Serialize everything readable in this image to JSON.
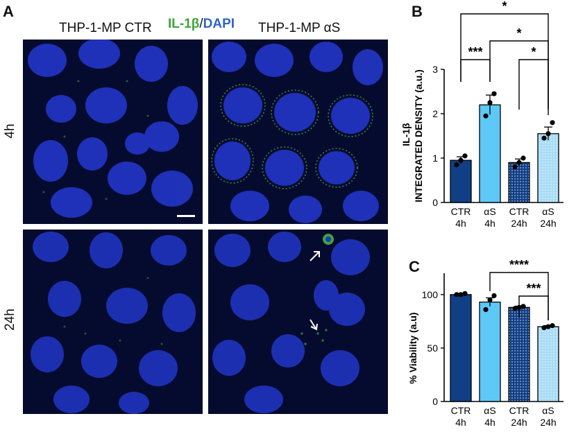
{
  "panel_a": {
    "letter": "A",
    "col_ctr": "THP-1-MP CTR",
    "col_as": "THP-1-MP αS",
    "stain_il": "IL-1β",
    "stain_sep": "/",
    "stain_dapi": "DAPI",
    "row_4h": "4h",
    "row_24h": "24h",
    "colors": {
      "il": "#3fa33a",
      "dapi": "#2f63c8",
      "nuclei": "#2236c8",
      "background": "#050b2e"
    }
  },
  "chart_data": [
    {
      "panel": "B",
      "type": "bar",
      "ylabel_line1": "IL-1β",
      "ylabel_line2": "INTEGRATED DENSITY (a.u.)",
      "ylim": [
        0,
        3
      ],
      "yticks": [
        "0",
        "1",
        "2",
        "3"
      ],
      "categories": [
        {
          "line1": "CTR",
          "line2": "4h"
        },
        {
          "line1": "αS",
          "line2": "4h"
        },
        {
          "line1": "CTR",
          "line2": "24h"
        },
        {
          "line1": "αS",
          "line2": "24h"
        }
      ],
      "values": [
        0.95,
        2.2,
        0.9,
        1.55
      ],
      "errors": [
        0.08,
        0.22,
        0.08,
        0.15
      ],
      "points": [
        [
          0.85,
          0.95,
          1.05
        ],
        [
          1.95,
          2.25,
          2.45
        ],
        [
          0.8,
          0.9,
          1.0
        ],
        [
          1.45,
          1.55,
          1.8
        ]
      ],
      "bar_colors": [
        "#103f86",
        "#5ec8f7",
        "#103f86",
        "#a7dcf6"
      ],
      "dotted": [
        false,
        false,
        true,
        true
      ],
      "significance": [
        {
          "from": 0,
          "to": 1,
          "label": "***"
        },
        {
          "from": 2,
          "to": 3,
          "label": "*"
        },
        {
          "from": 1,
          "to": 3,
          "label": "*"
        },
        {
          "from": 0,
          "to": 3,
          "label": "*"
        }
      ],
      "grid": false
    },
    {
      "panel": "C",
      "type": "bar",
      "ylabel": "% Viability (a.u)",
      "ylim": [
        0,
        120
      ],
      "yticks": [
        "0",
        "50",
        "100"
      ],
      "categories": [
        {
          "line1": "CTR",
          "line2": "4h"
        },
        {
          "line1": "αS",
          "line2": "4h"
        },
        {
          "line1": "CTR",
          "line2": "24h"
        },
        {
          "line1": "αS",
          "line2": "24h"
        }
      ],
      "values": [
        100,
        93,
        88,
        70
      ],
      "errors": [
        0.8,
        4,
        1.2,
        1
      ],
      "points": [
        [
          100,
          100,
          101
        ],
        [
          86,
          95,
          99
        ],
        [
          87,
          88,
          89
        ],
        [
          69,
          70,
          71
        ]
      ],
      "bar_colors": [
        "#103f86",
        "#5ec8f7",
        "#103f86",
        "#a7dcf6"
      ],
      "dotted": [
        false,
        false,
        true,
        true
      ],
      "significance": [
        {
          "from": 2,
          "to": 3,
          "label": "***"
        },
        {
          "from": 1,
          "to": 3,
          "label": "****"
        }
      ],
      "grid": false
    }
  ]
}
